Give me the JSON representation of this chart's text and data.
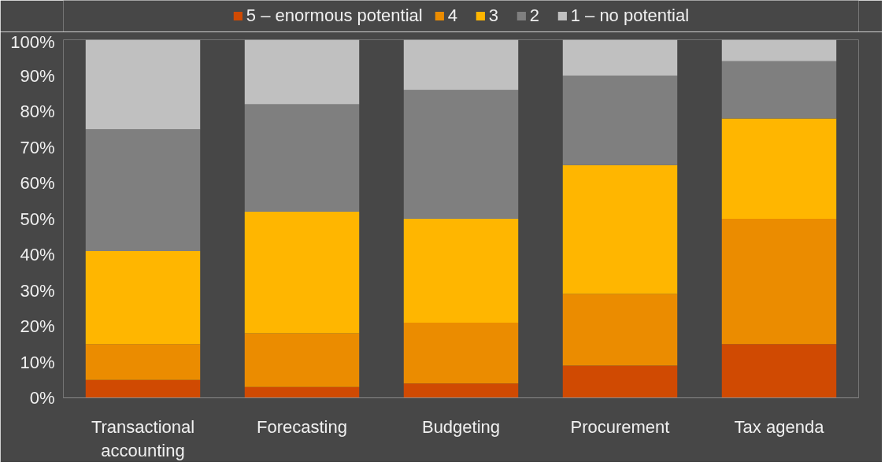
{
  "chart_data": {
    "type": "bar",
    "stacked": true,
    "categories": [
      "Transactional accounting",
      "Forecasting",
      "Budgeting",
      "Procurement",
      "Tax agenda"
    ],
    "series": [
      {
        "name": "5 – enormous potential",
        "color": "#d04a02",
        "values": [
          5,
          3,
          4,
          9,
          15
        ]
      },
      {
        "name": "4",
        "color": "#eb8c00",
        "values": [
          10,
          15,
          17,
          20,
          35
        ]
      },
      {
        "name": "3",
        "color": "#ffb600",
        "values": [
          26,
          34,
          29,
          36,
          28
        ]
      },
      {
        "name": "2",
        "color": "#7f7f7f",
        "values": [
          34,
          30,
          36,
          25,
          16
        ]
      },
      {
        "name": "1 – no potential",
        "color": "#c0c0c0",
        "values": [
          25,
          18,
          14,
          10,
          6
        ]
      }
    ],
    "ylim": [
      0,
      100
    ],
    "yticks": [
      {
        "value": 0,
        "label": "0%"
      },
      {
        "value": 10,
        "label": "10%"
      },
      {
        "value": 20,
        "label": "20%"
      },
      {
        "value": 30,
        "label": "30%"
      },
      {
        "value": 40,
        "label": "40%"
      },
      {
        "value": 50,
        "label": "50%"
      },
      {
        "value": 60,
        "label": "60%"
      },
      {
        "value": 70,
        "label": "70%"
      },
      {
        "value": 80,
        "label": "80%"
      },
      {
        "value": 90,
        "label": "90%"
      },
      {
        "value": 100,
        "label": "100%"
      }
    ],
    "grid": false,
    "legend": "top"
  }
}
